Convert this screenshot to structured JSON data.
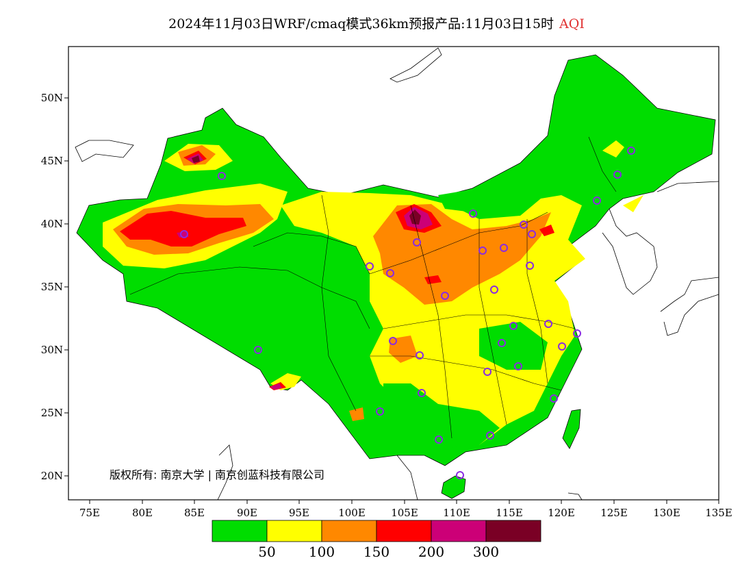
{
  "title": {
    "main": "2024年11月03日WRF/cmaq模式36km预报产品:11月03日15时",
    "variable": "AQI"
  },
  "axes": {
    "lon_labels": [
      "75E",
      "80E",
      "85E",
      "90E",
      "95E",
      "100E",
      "105E",
      "110E",
      "115E",
      "120E",
      "125E",
      "130E",
      "135E"
    ],
    "lat_labels": [
      "50N",
      "45N",
      "40N",
      "35N",
      "30N",
      "25N",
      "20N"
    ],
    "lon_range": [
      73,
      135
    ],
    "lat_range": [
      18,
      54
    ]
  },
  "legend": {
    "colors": [
      "#00dd00",
      "#ffff00",
      "#ff8800",
      "#ff0000",
      "#cc0077",
      "#7a0025"
    ],
    "labels": [
      "50",
      "100",
      "150",
      "200",
      "300"
    ]
  },
  "copyright": "版权所有: 南京大学 | 南京创蓝科技有限公司",
  "station_color": "#8a2be2"
}
